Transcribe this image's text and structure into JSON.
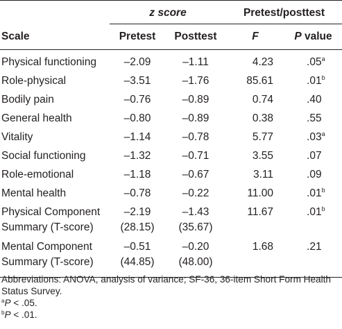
{
  "table": {
    "group_headers": {
      "z_score": "z score",
      "pretest_posttest": "Pretest/posttest"
    },
    "column_headers": {
      "scale": "Scale",
      "pretest": "Pretest",
      "posttest": "Posttest",
      "f": "F",
      "p_value_italic": "P",
      "p_value_rest": " value"
    },
    "rows": [
      {
        "scale": [
          "Physical functioning"
        ],
        "pretest": [
          "–2.09"
        ],
        "posttest": [
          "–1.11"
        ],
        "f": "4.23",
        "p": ".05",
        "p_mark": "a"
      },
      {
        "scale": [
          "Role-physical"
        ],
        "pretest": [
          "–3.51"
        ],
        "posttest": [
          "–1.76"
        ],
        "f": "85.61",
        "p": ".01",
        "p_mark": "b"
      },
      {
        "scale": [
          "Bodily pain"
        ],
        "pretest": [
          "–0.76"
        ],
        "posttest": [
          "–0.89"
        ],
        "f": "0.74",
        "p": ".40",
        "p_mark": ""
      },
      {
        "scale": [
          "General health"
        ],
        "pretest": [
          "–0.80"
        ],
        "posttest": [
          "–0.89"
        ],
        "f": "0.38",
        "p": ".55",
        "p_mark": ""
      },
      {
        "scale": [
          "Vitality"
        ],
        "pretest": [
          "–1.14"
        ],
        "posttest": [
          "–0.78"
        ],
        "f": "5.77",
        "p": ".03",
        "p_mark": "a"
      },
      {
        "scale": [
          "Social functioning"
        ],
        "pretest": [
          "–1.32"
        ],
        "posttest": [
          "–0.71"
        ],
        "f": "3.55",
        "p": ".07",
        "p_mark": ""
      },
      {
        "scale": [
          "Role-emotional"
        ],
        "pretest": [
          "–1.18"
        ],
        "posttest": [
          "–0.67"
        ],
        "f": "3.11",
        "p": ".09",
        "p_mark": ""
      },
      {
        "scale": [
          "Mental health"
        ],
        "pretest": [
          "–0.78"
        ],
        "posttest": [
          "–0.22"
        ],
        "f": "11.00",
        "p": ".01",
        "p_mark": "b"
      },
      {
        "scale": [
          "Physical Component",
          "Summary (T-score)"
        ],
        "pretest": [
          "–2.19",
          "(28.15)"
        ],
        "posttest": [
          "–1.43",
          "(35.67)"
        ],
        "f": "11.67",
        "p": ".01",
        "p_mark": "b"
      },
      {
        "scale": [
          "Mental Component",
          "Summary (T-score)"
        ],
        "pretest": [
          "–0.51",
          "(44.85)"
        ],
        "posttest": [
          "–0.20",
          "(48.00)"
        ],
        "f": "1.68",
        "p": ".21",
        "p_mark": ""
      }
    ]
  },
  "notes": {
    "abbreviations": "Abbreviations: ANOVA, analysis of variance; SF-36, 36-item Short Form Health Status Survey.",
    "footnote_a": {
      "mark": "a",
      "italic": "P",
      "text": " < .05."
    },
    "footnote_b": {
      "mark": "b",
      "italic": "P",
      "text": " < .01."
    }
  }
}
